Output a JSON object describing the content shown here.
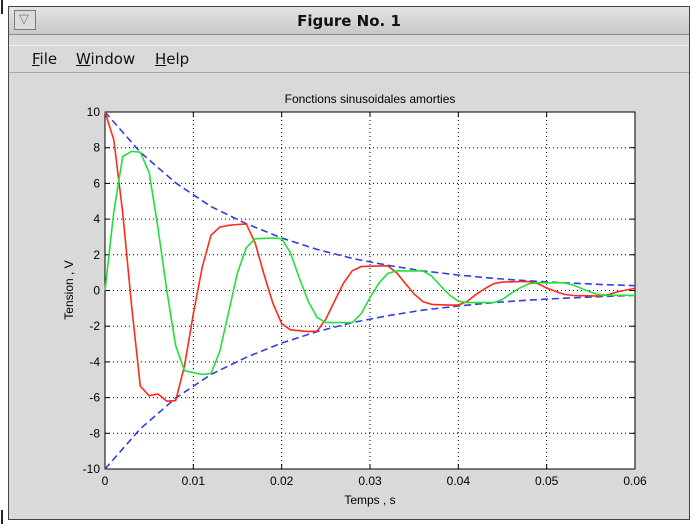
{
  "window": {
    "title": "Figure No. 1",
    "menu_glyph": "▽"
  },
  "menu": {
    "file": {
      "underline": "F",
      "rest": "ile"
    },
    "window": {
      "underline": "W",
      "rest": "indow"
    },
    "help": {
      "underline": "H",
      "rest": "elp"
    }
  },
  "chart_data": {
    "type": "line",
    "title": "Fonctions sinusoidales amorties",
    "xlabel": "Temps , s",
    "ylabel": "Tension , V",
    "xlim": [
      0,
      0.06
    ],
    "ylim": [
      -10,
      10
    ],
    "grid": true,
    "xticks": [
      "0",
      "0.01",
      "0.02",
      "0.03",
      "0.04",
      "0.05",
      "0.06"
    ],
    "yticks": [
      "10",
      "8",
      "6",
      "4",
      "2",
      "0",
      "-2",
      "-4",
      "-6",
      "-8",
      "-10"
    ],
    "series": [
      {
        "kind": "envelope",
        "style": "dashed",
        "color": "#2f3fe0",
        "x": [
          0,
          0.004,
          0.008,
          0.012,
          0.016,
          0.02,
          0.024,
          0.028,
          0.032,
          0.036,
          0.04,
          0.044,
          0.048,
          0.052,
          0.056,
          0.06
        ],
        "y": [
          10.0,
          7.75,
          6.03,
          4.7,
          3.74,
          2.94,
          2.3,
          1.8,
          1.41,
          1.1,
          0.87,
          0.68,
          0.54,
          0.43,
          0.34,
          0.27
        ]
      },
      {
        "kind": "envelope",
        "style": "dashed",
        "color": "#2f3fe0",
        "x": [
          0,
          0.004,
          0.008,
          0.012,
          0.016,
          0.02,
          0.024,
          0.028,
          0.032,
          0.036,
          0.04,
          0.044,
          0.048,
          0.052,
          0.056,
          0.06
        ],
        "y": [
          -10.0,
          -7.75,
          -6.03,
          -4.7,
          -3.74,
          -2.94,
          -2.3,
          -1.8,
          -1.41,
          -1.1,
          -0.87,
          -0.68,
          -0.54,
          -0.43,
          -0.34,
          -0.27
        ]
      },
      {
        "kind": "curve",
        "color": "#ff2a1a",
        "x": [
          0,
          0.001,
          0.002,
          0.003,
          0.004,
          0.005,
          0.006,
          0.007,
          0.008,
          0.009,
          0.01,
          0.011,
          0.012,
          0.013,
          0.014,
          0.015,
          0.016,
          0.017,
          0.018,
          0.019,
          0.02,
          0.021,
          0.022,
          0.023,
          0.024,
          0.025,
          0.026,
          0.027,
          0.028,
          0.029,
          0.03,
          0.031,
          0.032,
          0.033,
          0.034,
          0.035,
          0.036,
          0.037,
          0.038,
          0.039,
          0.04,
          0.041,
          0.042,
          0.043,
          0.044,
          0.045,
          0.046,
          0.047,
          0.048,
          0.049,
          0.05,
          0.051,
          0.052,
          0.053,
          0.054,
          0.055,
          0.056,
          0.057,
          0.058,
          0.059,
          0.06
        ],
        "y": [
          10.0,
          8.44,
          4.37,
          -0.8,
          -5.35,
          -5.9,
          -5.8,
          -6.2,
          -6.17,
          -4.22,
          -1.32,
          1.3,
          3.1,
          3.55,
          3.65,
          3.7,
          3.73,
          2.65,
          0.9,
          -0.7,
          -1.86,
          -2.2,
          -2.25,
          -2.3,
          -2.28,
          -1.61,
          -0.58,
          0.41,
          1.11,
          1.34,
          1.36,
          1.38,
          1.38,
          1.0,
          0.4,
          -0.2,
          -0.62,
          -0.78,
          -0.8,
          -0.82,
          -0.82,
          -0.61,
          -0.22,
          0.1,
          0.38,
          0.47,
          0.49,
          0.5,
          0.5,
          0.38,
          0.14,
          -0.05,
          -0.22,
          -0.28,
          -0.29,
          -0.3,
          -0.3,
          -0.23,
          -0.08,
          0.03,
          0.12
        ]
      },
      {
        "kind": "curve",
        "color": "#22e03a",
        "x": [
          0,
          0.001,
          0.002,
          0.003,
          0.004,
          0.005,
          0.006,
          0.007,
          0.008,
          0.009,
          0.01,
          0.011,
          0.012,
          0.013,
          0.014,
          0.015,
          0.016,
          0.017,
          0.018,
          0.019,
          0.02,
          0.021,
          0.022,
          0.023,
          0.024,
          0.025,
          0.026,
          0.027,
          0.028,
          0.029,
          0.03,
          0.031,
          0.032,
          0.033,
          0.034,
          0.035,
          0.036,
          0.037,
          0.038,
          0.039,
          0.04,
          0.041,
          0.042,
          0.043,
          0.044,
          0.045,
          0.046,
          0.047,
          0.048,
          0.049,
          0.05,
          0.051,
          0.052,
          0.053,
          0.054,
          0.055,
          0.056,
          0.057,
          0.058,
          0.059,
          0.06
        ],
        "y": [
          0.0,
          4.4,
          7.5,
          7.8,
          7.75,
          6.6,
          3.5,
          0.0,
          -3.1,
          -4.5,
          -4.6,
          -4.7,
          -4.65,
          -3.4,
          -1.2,
          1.0,
          2.4,
          2.9,
          2.92,
          2.94,
          2.9,
          2.1,
          0.7,
          -0.6,
          -1.5,
          -1.8,
          -1.8,
          -1.8,
          -1.8,
          -1.3,
          -0.4,
          0.4,
          0.95,
          1.1,
          1.1,
          1.1,
          1.1,
          0.8,
          0.25,
          -0.25,
          -0.6,
          -0.68,
          -0.68,
          -0.68,
          -0.68,
          -0.5,
          -0.15,
          0.15,
          0.38,
          0.43,
          0.43,
          0.43,
          0.43,
          0.31,
          0.1,
          -0.1,
          -0.24,
          -0.27,
          -0.27,
          -0.27,
          -0.27
        ]
      }
    ]
  }
}
